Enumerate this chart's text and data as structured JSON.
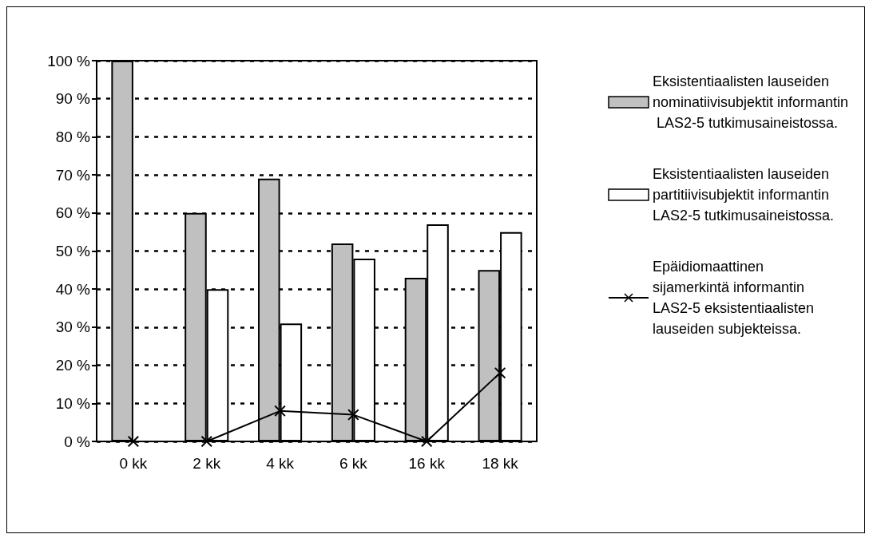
{
  "chart_data": {
    "type": "bar",
    "categories": [
      "0 kk",
      "2 kk",
      "4 kk",
      "6 kk",
      "16 kk",
      "18 kk"
    ],
    "series": [
      {
        "name": "Eksistentiaalisten lauseiden nominatiivisubjektit informantin LAS2-5 tutkimusaineistossa.",
        "color": "#c0c0c0",
        "values": [
          100,
          60,
          69,
          52,
          43,
          45
        ]
      },
      {
        "name": "Eksistentiaalisten lauseiden partitiivisubjektit informantin LAS2-5 tutkimusaineistossa.",
        "color": "#ffffff",
        "values": [
          null,
          40,
          31,
          48,
          57,
          55
        ]
      },
      {
        "name": "Epäidiomaattinen sijamerkintä informantin LAS2-5 eksistentiaalisten lauseiden subjekteissa.",
        "type": "line",
        "color": "#000000",
        "marker": "cross",
        "values": [
          0,
          0,
          8,
          7,
          0,
          18
        ]
      }
    ],
    "ylim": [
      0,
      100
    ],
    "yticks": [
      {
        "value": 0,
        "label": "0 %"
      },
      {
        "value": 10,
        "label": "10 %"
      },
      {
        "value": 20,
        "label": "20 %"
      },
      {
        "value": 30,
        "label": "30 %"
      },
      {
        "value": 40,
        "label": "40 %"
      },
      {
        "value": 50,
        "label": "50 %"
      },
      {
        "value": 60,
        "label": "60 %"
      },
      {
        "value": 70,
        "label": "70 %"
      },
      {
        "value": 80,
        "label": "80 %"
      },
      {
        "value": 90,
        "label": "90 %"
      },
      {
        "value": 100,
        "label": "100 %"
      }
    ],
    "grid": "y",
    "legend": "right"
  }
}
